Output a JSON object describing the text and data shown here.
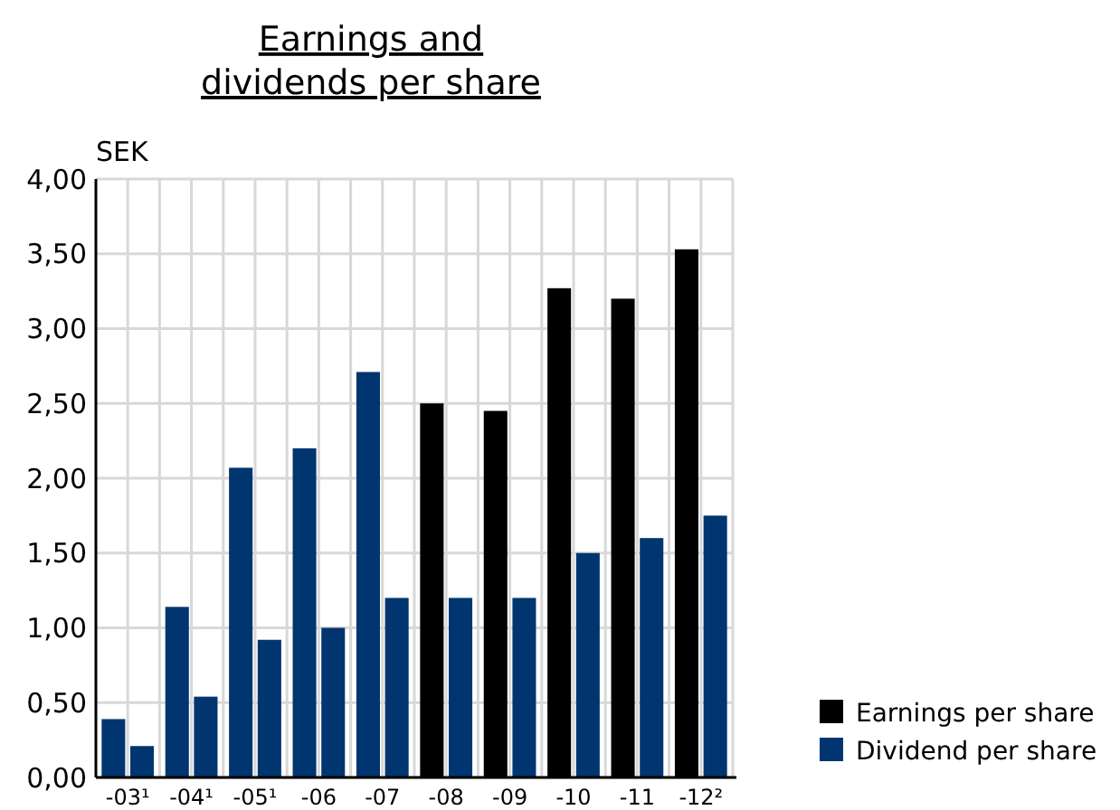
{
  "chart_data": {
    "type": "bar",
    "title": "Earnings and dividends per share",
    "ylabel": "SEK",
    "categories": [
      "-03¹",
      "-04¹",
      "-05¹",
      "-06",
      "-07",
      "-08",
      "-09",
      "-10",
      "-11",
      "-12²"
    ],
    "series": [
      {
        "name": "Earnings per share",
        "color": "#000000",
        "colors": [
          "#003570",
          "#003570",
          "#003570",
          "#003570",
          "#003570",
          "#000000",
          "#000000",
          "#000000",
          "#000000",
          "#000000"
        ],
        "values": [
          0.39,
          1.14,
          2.07,
          2.2,
          2.71,
          2.5,
          2.45,
          3.27,
          3.2,
          3.53
        ]
      },
      {
        "name": "Dividend per share",
        "color": "#003570",
        "values": [
          0.21,
          0.54,
          0.92,
          1.0,
          1.2,
          1.2,
          1.2,
          1.5,
          1.6,
          1.75
        ]
      }
    ],
    "ylim": [
      0,
      4
    ],
    "yticks": [
      {
        "value": 0,
        "label": "0,00"
      },
      {
        "value": 0.5,
        "label": "0,50"
      },
      {
        "value": 1,
        "label": "1,00"
      },
      {
        "value": 1.5,
        "label": "1,50"
      },
      {
        "value": 2,
        "label": "2,00"
      },
      {
        "value": 2.5,
        "label": "2,50"
      },
      {
        "value": 3,
        "label": "3,00"
      },
      {
        "value": 3.5,
        "label": "3,50"
      },
      {
        "value": 4,
        "label": "4,00"
      }
    ],
    "grid": true,
    "legend": "bottom right"
  }
}
